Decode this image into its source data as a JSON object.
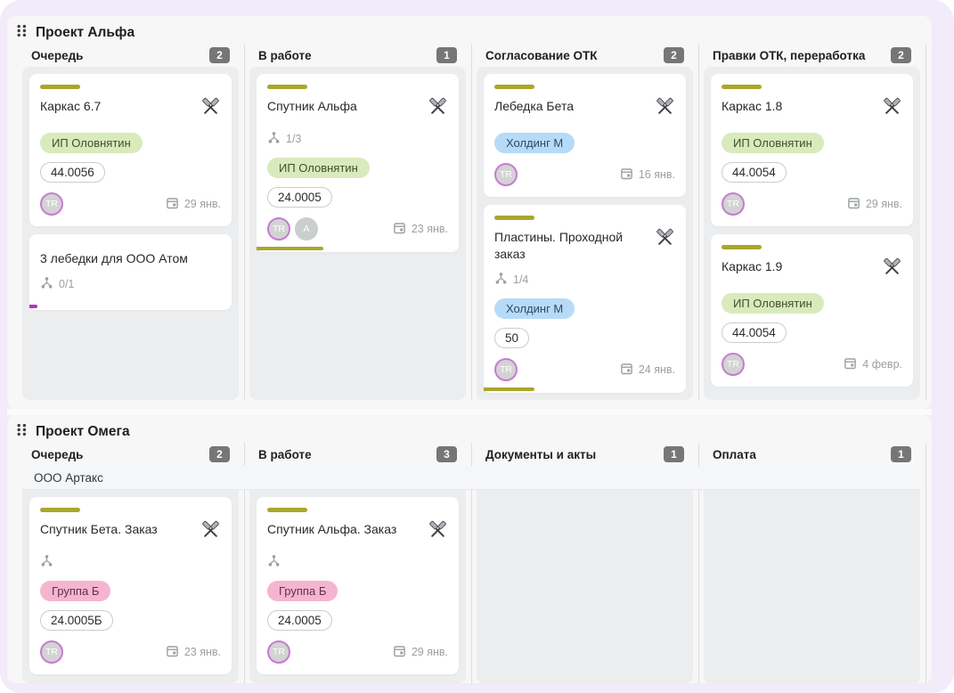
{
  "theme": {
    "page_bg": "#f1ebfa",
    "panel_bg": "#f7f7f8",
    "column_bg": "#ebedef",
    "card_bg": "#ffffff",
    "accent_olive": "#a9a72c",
    "accent_magenta": "#b13ab1",
    "badge_gray": "#767676",
    "avatar_ring_purple": "#c77ad4",
    "tag_green_bg": "#d9eabd",
    "tag_blue_bg": "#b6dbf8",
    "tag_pink_bg": "#f5b5d0"
  },
  "icons": {
    "drag_handle": "six-dots-grip",
    "card_badge": "crossed-hammers",
    "subtasks": "branch-tree",
    "due_date": "calendar"
  },
  "lanes": [
    {
      "title": "Проект Альфа",
      "columns": [
        {
          "name": "Очередь",
          "count": "2",
          "cards": [
            {
              "title": "Каркас 6.7",
              "tag": "ИП Оловнятин",
              "tag_color": "green",
              "chip": "44.0056",
              "avatar": "TR",
              "date": "29 янв."
            },
            {
              "title": "3 лебедки для ООО Атом",
              "subtasks": "0/1",
              "progress": 4,
              "progress_color": "magenta"
            }
          ]
        },
        {
          "name": "В работе",
          "count": "1",
          "cards": [
            {
              "title": "Спутник Альфа",
              "subtasks": "1/3",
              "tag": "ИП Оловнятин",
              "tag_color": "green",
              "chip": "24.0005",
              "avatar": "TR",
              "avatar2": "A",
              "date": "23 янв.",
              "progress": 33,
              "progress_color": "olive"
            }
          ]
        },
        {
          "name": "Согласование ОТК",
          "count": "2",
          "cards": [
            {
              "title": "Лебедка Бета",
              "tag": "Холдинг М",
              "tag_color": "blue",
              "avatar": "TR",
              "date": "16 янв."
            },
            {
              "title": "Пластины. Проходной заказ",
              "subtasks": "1/4",
              "tag": "Холдинг М",
              "tag_color": "blue",
              "chip": "50",
              "avatar": "TR",
              "date": "24 янв.",
              "progress": 25,
              "progress_color": "olive"
            }
          ]
        },
        {
          "name": "Правки ОТК, переработка",
          "count": "2",
          "cards": [
            {
              "title": "Каркас 1.8",
              "tag": "ИП Оловнятин",
              "tag_color": "green",
              "chip": "44.0054",
              "avatar": "TR",
              "date": "29 янв."
            },
            {
              "title": "Каркас 1.9",
              "tag": "ИП Оловнятин",
              "tag_color": "green",
              "chip": "44.0054",
              "avatar": "TR",
              "date": "4 февр."
            }
          ]
        }
      ]
    },
    {
      "title": "Проект Омега",
      "group": "ООО Артакс",
      "columns": [
        {
          "name": "Очередь",
          "count": "2",
          "cards": [
            {
              "title": "Спутник Бета. Заказ",
              "subtasks": "",
              "tag": "Группа Б",
              "tag_color": "pink",
              "chip": "24.0005Б",
              "avatar": "TR",
              "date": "23 янв."
            }
          ]
        },
        {
          "name": "В работе",
          "count": "3",
          "cards": [
            {
              "title": "Спутник Альфа. Заказ",
              "subtasks": "",
              "tag": "Группа Б",
              "tag_color": "pink",
              "chip": "24.0005",
              "avatar": "TR",
              "date": "29 янв."
            }
          ]
        },
        {
          "name": "Документы и акты",
          "count": "1",
          "cards": []
        },
        {
          "name": "Оплата",
          "count": "1",
          "cards": []
        }
      ]
    }
  ]
}
